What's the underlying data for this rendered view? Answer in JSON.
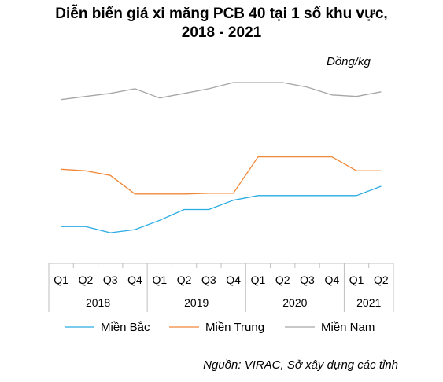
{
  "title_line1": "Diễn biến giá xi măng PCB 40 tại 1 số khu vực,",
  "title_line2": "2018 - 2021",
  "unit": "Đồng/kg",
  "source": "Nguồn: VIRAC, Sở xây dựng các tỉnh",
  "chart_data": {
    "type": "line",
    "title": "Diễn biến giá xi măng PCB 40 tại 1 số khu vực, 2018 - 2021",
    "ylabel": "Đồng/kg",
    "ylim": [
      0,
      100
    ],
    "y_axis_shown": false,
    "grid": false,
    "legend_position": "bottom",
    "categories": [
      "Q1",
      "Q2",
      "Q3",
      "Q4",
      "Q1",
      "Q2",
      "Q3",
      "Q4",
      "Q1",
      "Q2",
      "Q3",
      "Q4",
      "Q1",
      "Q2"
    ],
    "groups": [
      {
        "label": "2018",
        "count": 4
      },
      {
        "label": "2019",
        "count": 4
      },
      {
        "label": "2020",
        "count": 4
      },
      {
        "label": "2021",
        "count": 2
      }
    ],
    "series": [
      {
        "name": "Miền Bắc",
        "color": "#29ABE2",
        "values": [
          7,
          7,
          3,
          5,
          11,
          18,
          18,
          24,
          27,
          27,
          27,
          27,
          27,
          33
        ]
      },
      {
        "name": "Miền Trung",
        "color": "#F0883A",
        "values": [
          44,
          43,
          40,
          28,
          28,
          28,
          28.5,
          28.5,
          52,
          52,
          52,
          52,
          43,
          43
        ]
      },
      {
        "name": "Miền Nam",
        "color": "#A6A6A6",
        "values": [
          89,
          91,
          93,
          96,
          90,
          93,
          96,
          100,
          100,
          100,
          97,
          92,
          91,
          94
        ]
      }
    ]
  }
}
